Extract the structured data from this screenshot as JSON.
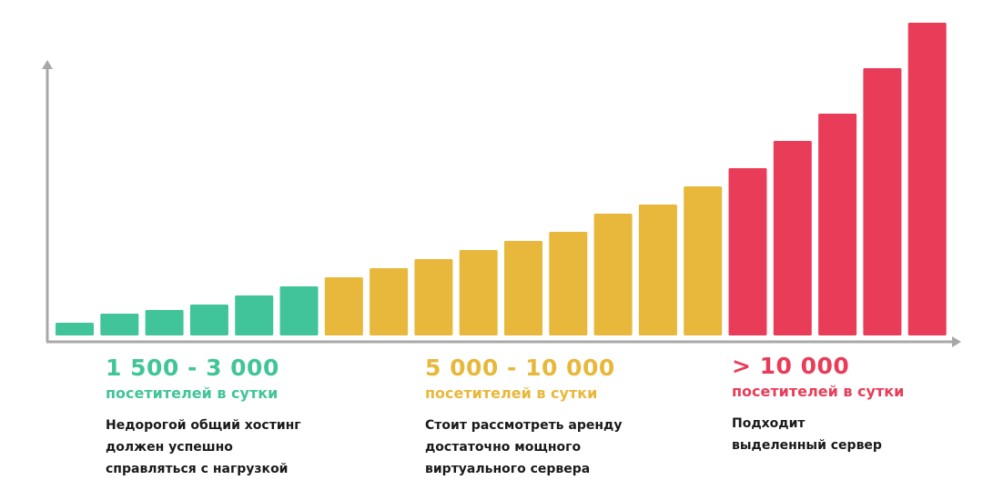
{
  "chart_data": {
    "type": "bar",
    "title": "",
    "xlabel": "",
    "ylabel": "",
    "grid": false,
    "colors": {
      "green": "#42c49a",
      "yellow": "#e8b83c",
      "red": "#e93c58",
      "axis": "#a8a8a8"
    },
    "values": [
      14,
      24,
      28,
      34,
      44,
      54,
      64,
      74,
      84,
      94,
      104,
      114,
      134,
      144,
      164,
      184,
      214,
      244,
      294,
      344
    ],
    "bar_groups": [
      "green",
      "green",
      "green",
      "green",
      "green",
      "green",
      "yellow",
      "yellow",
      "yellow",
      "yellow",
      "yellow",
      "yellow",
      "yellow",
      "yellow",
      "yellow",
      "red",
      "red",
      "red",
      "red",
      "red"
    ],
    "ylim": [
      0,
      350
    ],
    "annotations": [
      {
        "color": "green",
        "range": "1 500 - 3 000",
        "unit": "посетителей в сутки",
        "description": [
          "Недорогой общий хостинг",
          "должен успешно",
          "справляться с нагрузкой"
        ]
      },
      {
        "color": "yellow",
        "range": "5 000 - 10 000",
        "unit": "посетителей в сутки",
        "description": [
          "Стоит рассмотреть аренду",
          "достаточно мощного",
          "виртуального сервера"
        ]
      },
      {
        "color": "red",
        "range": "> 10 000",
        "unit": "посетителей в сутки",
        "description": [
          "Подходит",
          "выделенный сервер"
        ]
      }
    ]
  }
}
